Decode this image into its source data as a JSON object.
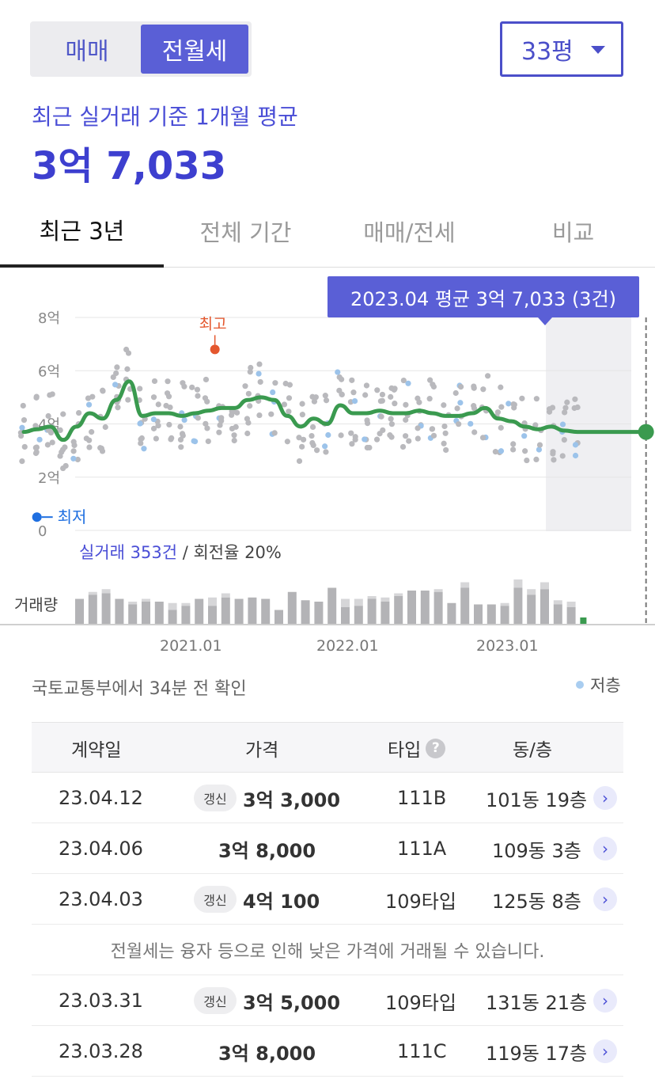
{
  "toggle": {
    "sale_label": "매매",
    "rent_label": "전월세",
    "selected": "전월세"
  },
  "size_select": {
    "value": "33평"
  },
  "summary": {
    "label": "최근 실거래 기준 1개월 평균",
    "value": "3억 7,033"
  },
  "tabs": [
    {
      "label": "최근 3년",
      "active": true
    },
    {
      "label": "전체 기간",
      "active": false
    },
    {
      "label": "매매/전세",
      "active": false
    },
    {
      "label": "비교",
      "active": false
    }
  ],
  "chart_data": {
    "type": "line",
    "tooltip": "2023.04 평균 3억 7,033 (3건)",
    "y_ticks": [
      "8억",
      "6억",
      "4억",
      "2억",
      "0"
    ],
    "y_tick_values": [
      8,
      6,
      4,
      2,
      0
    ],
    "ylim": [
      0,
      8
    ],
    "unit": "억",
    "x_ticks": [
      "2021.01",
      "2022.01",
      "2023.01"
    ],
    "x_tick_months": [
      0,
      12,
      24
    ],
    "highest_label": "최고",
    "highest_point": {
      "month": 2.5,
      "value": 6.8
    },
    "lowest_label": "최저",
    "lowest_point": {
      "month": -11,
      "value": 0.5
    },
    "average_series": [
      [
        -12,
        3.7
      ],
      [
        -11,
        3.8
      ],
      [
        -10,
        3.9
      ],
      [
        -9,
        3.4
      ],
      [
        -8,
        3.9
      ],
      [
        -7,
        4.4
      ],
      [
        -6,
        4.2
      ],
      [
        -5,
        4.9
      ],
      [
        -4,
        5.6
      ],
      [
        -3,
        4.3
      ],
      [
        -2,
        4.4
      ],
      [
        -1,
        4.4
      ],
      [
        0,
        4.3
      ],
      [
        1,
        4.4
      ],
      [
        2,
        4.5
      ],
      [
        3,
        4.6
      ],
      [
        4,
        4.6
      ],
      [
        5,
        4.9
      ],
      [
        6,
        5.0
      ],
      [
        7,
        4.9
      ],
      [
        8,
        4.3
      ],
      [
        9,
        3.9
      ],
      [
        10,
        4.2
      ],
      [
        11,
        4.0
      ],
      [
        12,
        4.7
      ],
      [
        13,
        4.4
      ],
      [
        14,
        4.4
      ],
      [
        15,
        4.5
      ],
      [
        16,
        4.4
      ],
      [
        17,
        4.4
      ],
      [
        18,
        4.5
      ],
      [
        19,
        4.4
      ],
      [
        20,
        4.3
      ],
      [
        21,
        4.3
      ],
      [
        22,
        4.4
      ],
      [
        23,
        4.6
      ],
      [
        24,
        4.2
      ],
      [
        25,
        4.1
      ],
      [
        26,
        3.9
      ],
      [
        27,
        3.8
      ],
      [
        28,
        3.9
      ],
      [
        29,
        3.75
      ],
      [
        30,
        3.7
      ]
    ],
    "current_point": {
      "month": 35.2,
      "value": 3.7
    },
    "volume": [
      18,
      21,
      22,
      18,
      14,
      16,
      16,
      10,
      13,
      18,
      13,
      19,
      18,
      19,
      18,
      10,
      23,
      17,
      16,
      26,
      12,
      13,
      18,
      16,
      20,
      24,
      24,
      23,
      15,
      26,
      14,
      14,
      13,
      26,
      21,
      25,
      14,
      12,
      3
    ],
    "volume_light": [
      0,
      2,
      3,
      0,
      2,
      2,
      0,
      5,
      2,
      0,
      6,
      3,
      0,
      0,
      0,
      0,
      0,
      0,
      0,
      0,
      6,
      5,
      2,
      3,
      2,
      0,
      0,
      2,
      0,
      4,
      0,
      0,
      2,
      6,
      4,
      5,
      3,
      4,
      0
    ],
    "scatter_note": "individual transactions around 2.8~6억"
  },
  "stats": {
    "count_label": "실거래 353건",
    "rotation_label": " / 회전율 20%"
  },
  "volume_label": "거래량",
  "source": "국토교통부에서 34분 전 확인",
  "legend_low_floor": "저층",
  "table": {
    "headers": {
      "date": "계약일",
      "price": "가격",
      "type": "타입",
      "unit": "동/층"
    },
    "rows": [
      {
        "date": "23.04.12",
        "badge": "갱신",
        "price": "3억 3,000",
        "type": "111B",
        "unit": "101동 19층"
      },
      {
        "date": "23.04.06",
        "badge": "",
        "price": "3억 8,000",
        "type": "111A",
        "unit": "109동 3층"
      },
      {
        "date": "23.04.03",
        "badge": "갱신",
        "price": "4억 100",
        "type": "109타입",
        "unit": "125동 8층"
      }
    ],
    "notice": "전월세는 융자 등으로 인해 낮은 가격에 거래될 수 있습니다.",
    "rows2": [
      {
        "date": "23.03.31",
        "badge": "갱신",
        "price": "3억 5,000",
        "type": "109타입",
        "unit": "131동 21층"
      },
      {
        "date": "23.03.28",
        "badge": "",
        "price": "3억 8,000",
        "type": "111C",
        "unit": "119동 17층"
      }
    ]
  }
}
